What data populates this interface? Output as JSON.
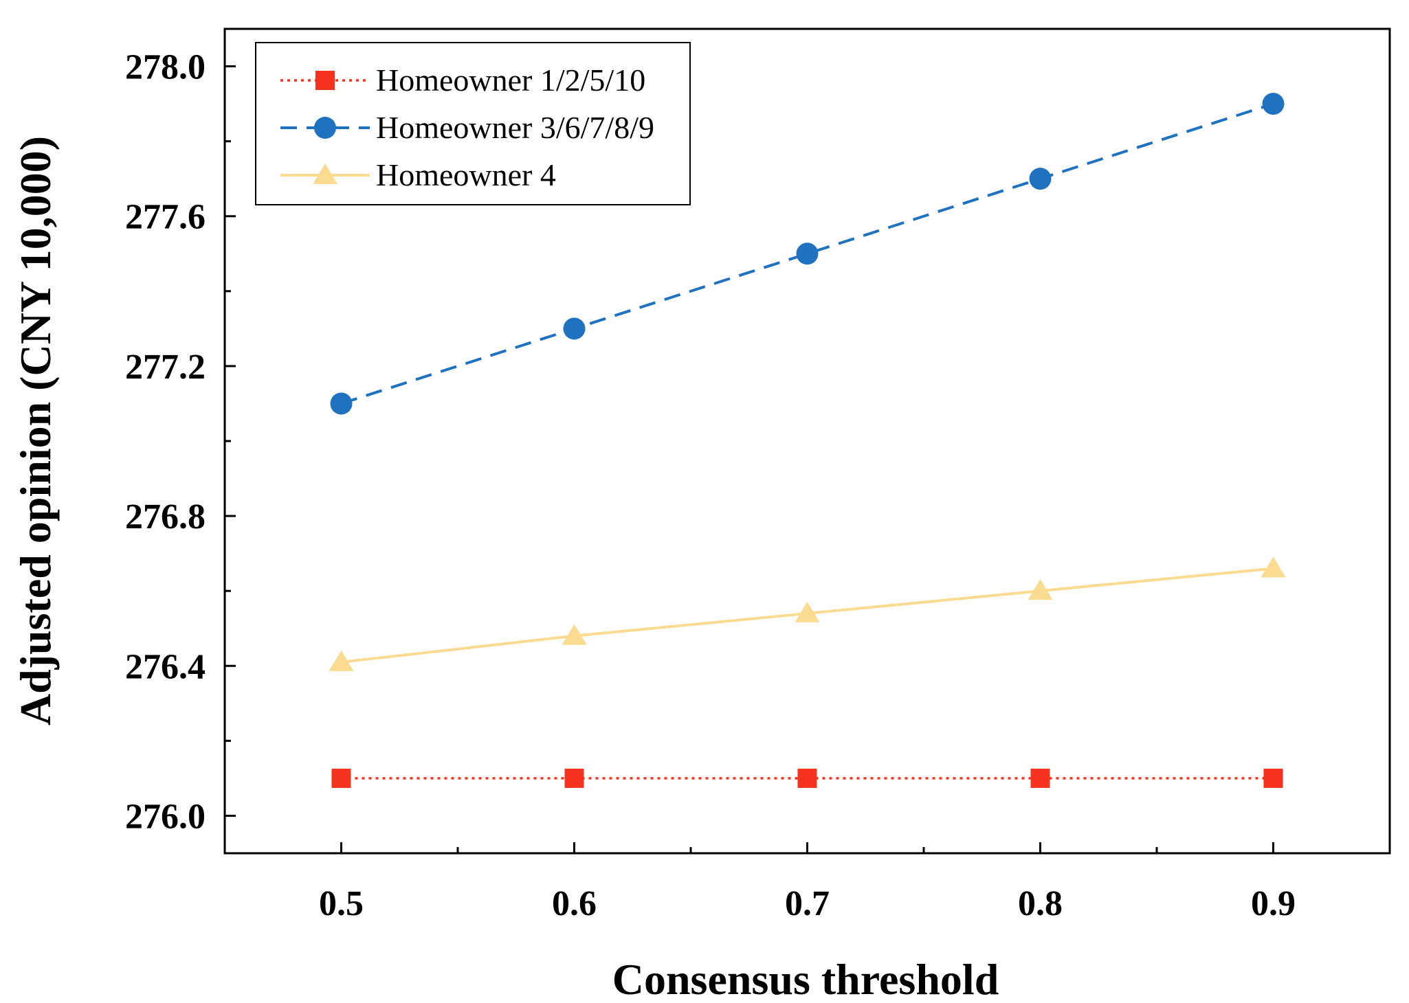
{
  "chart_data": {
    "type": "line",
    "title": "",
    "xlabel": "Consensus threshold",
    "ylabel": "Adjusted opinion (CNY 10,000)",
    "x": [
      0.5,
      0.6,
      0.7,
      0.8,
      0.9
    ],
    "x_tick_labels": [
      "0.5",
      "0.6",
      "0.7",
      "0.8",
      "0.9"
    ],
    "xlim": [
      0.45,
      0.95
    ],
    "y_tick_values": [
      276.0,
      276.4,
      276.8,
      277.2,
      277.6,
      278.0
    ],
    "y_tick_labels": [
      "276.0",
      "276.4",
      "276.8",
      "277.2",
      "277.6",
      "278.0"
    ],
    "ylim": [
      275.9,
      278.1
    ],
    "grid": false,
    "legend_position": "top-left",
    "series": [
      {
        "name": "Homeowner 1/2/5/10",
        "values": [
          276.1,
          276.1,
          276.1,
          276.1,
          276.1
        ],
        "color": "#f5321e",
        "line_style": "dotted",
        "marker": "square"
      },
      {
        "name": "Homeowner 3/6/7/8/9",
        "values": [
          277.1,
          277.3,
          277.5,
          277.7,
          277.9
        ],
        "color": "#1f72c0",
        "line_style": "dashed",
        "marker": "circle"
      },
      {
        "name": "Homeowner 4",
        "values": [
          276.41,
          276.48,
          276.54,
          276.6,
          276.66
        ],
        "color": "#fadb8f",
        "line_style": "solid",
        "marker": "triangle"
      }
    ]
  }
}
